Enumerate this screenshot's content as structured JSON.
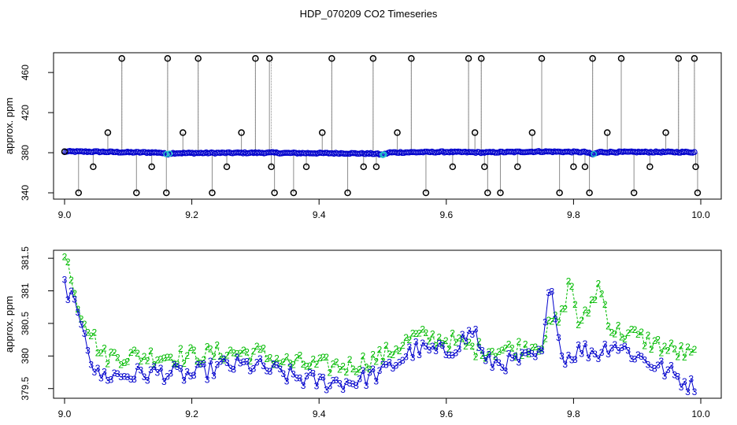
{
  "page": {
    "title": "HDP_070209  CO2 Timeseries"
  },
  "colors": {
    "line_gray": "#8c8c8c",
    "blue": "#0000cc",
    "cyan": "#22cccc",
    "green": "#00bb00",
    "black": "#000000",
    "axis": "#000000"
  },
  "chart_data": [
    {
      "type": "scatter",
      "title": "HDP_070209  CO2 Timeseries",
      "xlabel": "",
      "ylabel": "approx. ppm",
      "xlim": [
        9.0,
        10.0
      ],
      "ylim": [
        340,
        475
      ],
      "x_ticks": [
        9.0,
        9.2,
        9.4,
        9.6,
        9.8,
        10.0
      ],
      "x_tick_labels": [
        "9.0",
        "9.2",
        "9.4",
        "9.6",
        "9.8",
        "10.0"
      ],
      "y_ticks": [
        340,
        380,
        420,
        460
      ],
      "y_tick_labels": [
        "340",
        "380",
        "420",
        "460"
      ],
      "baseline": {
        "x": [
          9.0,
          9.05,
          9.1,
          9.15,
          9.16,
          9.17,
          9.25,
          9.33,
          9.34,
          9.45,
          9.49,
          9.5,
          9.51,
          9.6,
          9.66,
          9.67,
          9.75,
          9.82,
          9.83,
          9.84,
          9.9,
          9.99
        ],
        "y": [
          381.2,
          381.0,
          380.4,
          380.2,
          378.6,
          379.6,
          379.8,
          380.0,
          379.7,
          379.4,
          379.0,
          377.8,
          380.2,
          380.8,
          380.2,
          380.4,
          381.2,
          380.6,
          378.2,
          380.6,
          380.7,
          380.6
        ]
      },
      "cyan_x": [
        9.16,
        9.165,
        9.5,
        9.502,
        9.832
      ],
      "spike_x": [
        9.09,
        9.162,
        9.21,
        9.3,
        9.325,
        9.42,
        9.485,
        9.545,
        9.635,
        9.655,
        9.75,
        9.83,
        9.875,
        9.965,
        9.99
      ],
      "outliers": {
        "x": [
          9.0,
          9.022,
          9.045,
          9.068,
          9.09,
          9.113,
          9.137,
          9.16,
          9.162,
          9.186,
          9.21,
          9.232,
          9.255,
          9.278,
          9.3,
          9.322,
          9.325,
          9.33,
          9.36,
          9.38,
          9.405,
          9.42,
          9.445,
          9.47,
          9.485,
          9.49,
          9.523,
          9.545,
          9.568,
          9.61,
          9.635,
          9.645,
          9.655,
          9.66,
          9.665,
          9.685,
          9.712,
          9.735,
          9.75,
          9.778,
          9.8,
          9.818,
          9.825,
          9.83,
          9.853,
          9.875,
          9.895,
          9.92,
          9.945,
          9.965,
          9.99,
          9.992,
          9.995
        ],
        "y": [
          381,
          340,
          366,
          400,
          474,
          340,
          366,
          340,
          474,
          400,
          474,
          340,
          366,
          400,
          474,
          474,
          366,
          340,
          340,
          366,
          400,
          474,
          340,
          366,
          474,
          366,
          400,
          474,
          340,
          366,
          474,
          400,
          474,
          366,
          340,
          340,
          366,
          400,
          474,
          340,
          366,
          366,
          340,
          474,
          400,
          474,
          340,
          366,
          400,
          474,
          474,
          366,
          340
        ]
      }
    },
    {
      "type": "line",
      "title": "",
      "xlabel": "",
      "ylabel": "approx. ppm",
      "xlim": [
        9.0,
        10.0
      ],
      "ylim": [
        379.4,
        381.55
      ],
      "x_ticks": [
        9.0,
        9.2,
        9.4,
        9.6,
        9.8,
        10.0
      ],
      "x_tick_labels": [
        "9.0",
        "9.2",
        "9.4",
        "9.6",
        "9.8",
        "10.0"
      ],
      "y_ticks": [
        379.5,
        380.0,
        380.5,
        381.0,
        381.5
      ],
      "y_tick_labels": [
        "379.5",
        "380",
        "380.5",
        "381",
        "381.5"
      ],
      "series": [
        {
          "name": "2",
          "color": "green",
          "anchors_x": [
            9.0,
            9.01,
            9.02,
            9.03,
            9.04,
            9.05,
            9.06,
            9.1,
            9.15,
            9.2,
            9.25,
            9.3,
            9.35,
            9.4,
            9.45,
            9.5,
            9.55,
            9.6,
            9.65,
            9.7,
            9.75,
            9.765,
            9.78,
            9.795,
            9.81,
            9.84,
            9.86,
            9.9,
            9.95,
            9.99
          ],
          "anchors_y": [
            381.5,
            381.3,
            380.8,
            380.6,
            380.4,
            380.2,
            380.0,
            380.0,
            380.0,
            380.0,
            380.05,
            380.05,
            379.9,
            379.85,
            379.85,
            380.0,
            380.3,
            380.25,
            380.1,
            380.1,
            380.2,
            380.5,
            380.55,
            381.2,
            380.4,
            381.1,
            380.4,
            380.3,
            380.1,
            380.0
          ]
        },
        {
          "name": "3",
          "color": "blue",
          "anchors_x": [
            9.0,
            9.01,
            9.02,
            9.03,
            9.04,
            9.05,
            9.06,
            9.1,
            9.15,
            9.2,
            9.25,
            9.3,
            9.35,
            9.4,
            9.45,
            9.5,
            9.55,
            9.6,
            9.645,
            9.66,
            9.7,
            9.75,
            9.765,
            9.78,
            9.795,
            9.81,
            9.84,
            9.86,
            9.9,
            9.95,
            9.99
          ],
          "anchors_y": [
            381.1,
            380.9,
            380.6,
            380.5,
            380.0,
            379.7,
            379.7,
            379.7,
            379.75,
            379.7,
            379.85,
            379.85,
            379.7,
            379.6,
            379.6,
            379.75,
            380.1,
            380.05,
            380.4,
            379.9,
            379.9,
            380.0,
            381.2,
            380.0,
            380.0,
            380.1,
            380.05,
            380.2,
            380.0,
            379.75,
            379.5
          ]
        }
      ]
    }
  ]
}
